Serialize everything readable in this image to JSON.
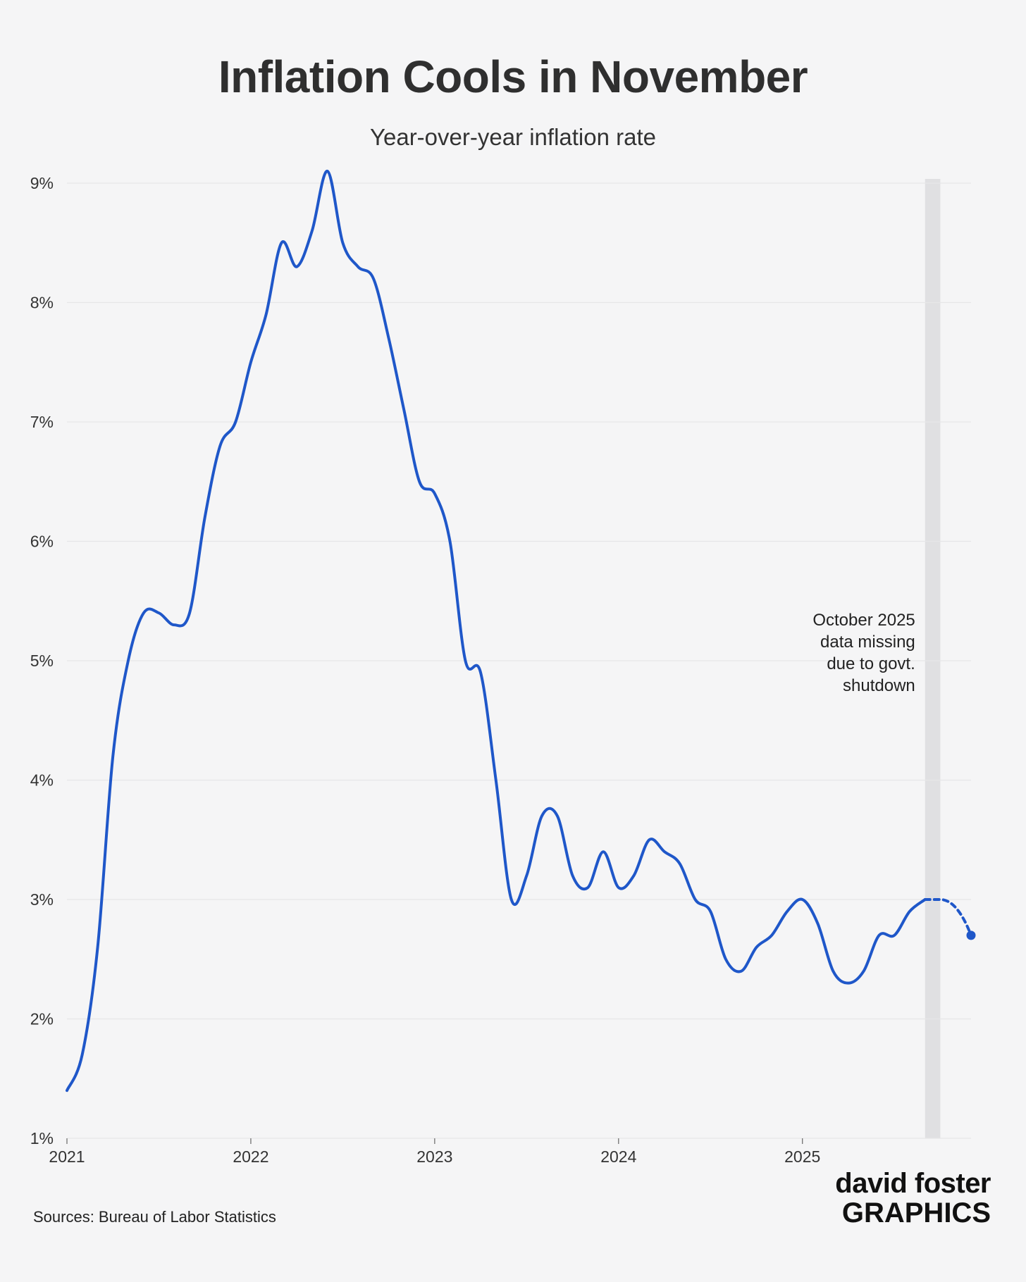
{
  "header": {
    "title": "Inflation Cools in November",
    "subtitle": "Year-over-year inflation rate"
  },
  "chart_data": {
    "type": "line",
    "title": "Inflation Cools in November",
    "subtitle": "Year-over-year inflation rate",
    "xlabel": "",
    "ylabel": "",
    "ylim": [
      1,
      9
    ],
    "y_ticks": [
      1,
      2,
      3,
      4,
      5,
      6,
      7,
      8,
      9
    ],
    "y_tick_labels": [
      "1%",
      "2%",
      "3%",
      "4%",
      "5%",
      "6%",
      "7%",
      "8%",
      "9%"
    ],
    "x_ticks": [
      2021,
      2022,
      2023,
      2024,
      2025
    ],
    "x_tick_labels": [
      "2021",
      "2022",
      "2023",
      "2024",
      "2025"
    ],
    "xlim": [
      2021.0,
      2025.917
    ],
    "grid": true,
    "series": [
      {
        "name": "Year-over-year inflation rate",
        "color": "#1f57c9",
        "x": [
          2021.0,
          2021.083,
          2021.167,
          2021.25,
          2021.333,
          2021.417,
          2021.5,
          2021.583,
          2021.667,
          2021.75,
          2021.833,
          2021.917,
          2022.0,
          2022.083,
          2022.167,
          2022.25,
          2022.333,
          2022.417,
          2022.5,
          2022.583,
          2022.667,
          2022.75,
          2022.833,
          2022.917,
          2023.0,
          2023.083,
          2023.167,
          2023.25,
          2023.333,
          2023.417,
          2023.5,
          2023.583,
          2023.667,
          2023.75,
          2023.833,
          2023.917,
          2024.0,
          2024.083,
          2024.167,
          2024.25,
          2024.333,
          2024.417,
          2024.5,
          2024.583,
          2024.667,
          2024.75,
          2024.833,
          2024.917,
          2025.0,
          2025.083,
          2025.167,
          2025.25,
          2025.333,
          2025.417,
          2025.5,
          2025.583,
          2025.667
        ],
        "values": [
          1.4,
          1.7,
          2.6,
          4.2,
          5.0,
          5.4,
          5.4,
          5.3,
          5.4,
          6.2,
          6.8,
          7.0,
          7.5,
          7.9,
          8.5,
          8.3,
          8.6,
          9.1,
          8.5,
          8.3,
          8.2,
          7.7,
          7.1,
          6.5,
          6.4,
          6.0,
          5.0,
          4.9,
          4.0,
          3.0,
          3.2,
          3.7,
          3.7,
          3.2,
          3.1,
          3.4,
          3.1,
          3.2,
          3.5,
          3.4,
          3.3,
          3.0,
          2.9,
          2.5,
          2.4,
          2.6,
          2.7,
          2.9,
          3.0,
          2.8,
          2.4,
          2.3,
          2.4,
          2.7,
          2.7,
          2.9,
          3.0
        ]
      }
    ],
    "missing_data": {
      "x": [
        2025.667,
        2025.75,
        2025.917
      ],
      "values": [
        3.0,
        3.0,
        2.7
      ],
      "style": "dashed"
    },
    "last_point": {
      "x": 2025.917,
      "value": 2.7
    },
    "shaded_band": {
      "x_start": 2025.667,
      "x_end": 2025.75
    },
    "annotation": {
      "lines": [
        "October 2025",
        "data missing",
        "due to govt.",
        "shutdown"
      ],
      "x": 2025.667,
      "y": 5.0
    }
  },
  "footer": {
    "source": "Sources: Bureau of Labor Statistics",
    "brand_top": "david foster",
    "brand_bottom": "GRAPHICS"
  },
  "colors": {
    "line": "#1f57c9",
    "band": "#e0e0e2",
    "grid": "#e6e6e8",
    "background": "#f5f5f6",
    "brand_accent": "#1aa6e0"
  }
}
